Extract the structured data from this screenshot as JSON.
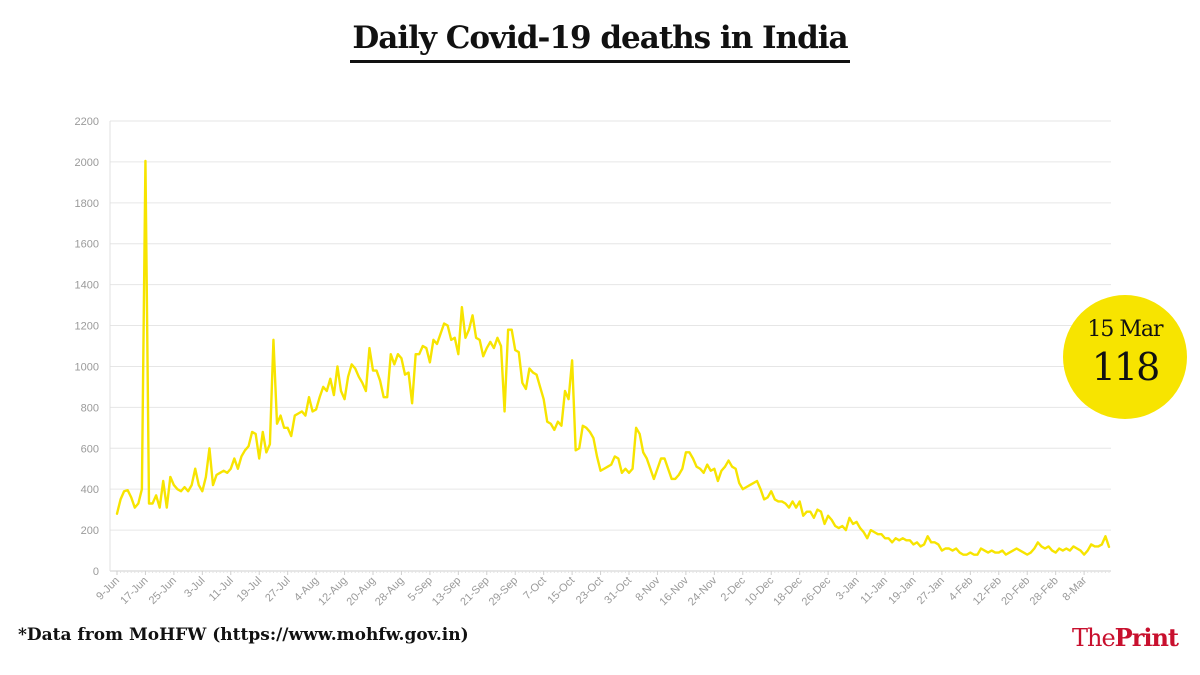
{
  "title": "Daily Covid-19 deaths in India",
  "source": "*Data from MoHFW (https://www.mohfw.gov.in)",
  "brand": {
    "part1": "The",
    "part2": "Print"
  },
  "callout": {
    "date": "15 Mar",
    "value": "118"
  },
  "colors": {
    "line": "#f7e400",
    "grid": "#e6e6e6",
    "axis_text": "#9a9a9a",
    "brand": "#c8102e",
    "badge": "#f7e400"
  },
  "chart_data": {
    "type": "line",
    "title": "Daily Covid-19 deaths in India",
    "xlabel": "",
    "ylabel": "",
    "ylim": [
      0,
      2200
    ],
    "yticks": [
      0,
      200,
      400,
      600,
      800,
      1000,
      1200,
      1400,
      1600,
      1800,
      2000,
      2200
    ],
    "grid": true,
    "legend": "none",
    "x_tick_labels": [
      "9-Jun",
      "17-Jun",
      "25-Jun",
      "3-Jul",
      "11-Jul",
      "19-Jul",
      "27-Jul",
      "4-Aug",
      "12-Aug",
      "20-Aug",
      "28-Aug",
      "5-Sep",
      "13-Sep",
      "21-Sep",
      "29-Sep",
      "7-Oct",
      "15-Oct",
      "23-Oct",
      "31-Oct",
      "8-Nov",
      "16-Nov",
      "24-Nov",
      "2-Dec",
      "10-Dec",
      "18-Dec",
      "26-Dec",
      "3-Jan",
      "11-Jan",
      "19-Jan",
      "27-Jan",
      "4-Feb",
      "12-Feb",
      "20-Feb",
      "28-Feb",
      "8-Mar"
    ],
    "x_start": "9-Jun",
    "x_end": "15-Mar",
    "series": [
      {
        "values": [
          280,
          350,
          390,
          395,
          360,
          310,
          330,
          400,
          2005,
          330,
          330,
          370,
          310,
          440,
          310,
          460,
          420,
          400,
          390,
          410,
          390,
          420,
          500,
          420,
          390,
          460,
          600,
          420,
          470,
          480,
          490,
          480,
          500,
          550,
          500,
          560,
          590,
          610,
          680,
          670,
          550,
          680,
          580,
          620,
          1130,
          720,
          760,
          700,
          700,
          660,
          760,
          770,
          780,
          760,
          850,
          780,
          790,
          850,
          900,
          880,
          940,
          860,
          1000,
          880,
          840,
          950,
          1010,
          990,
          950,
          920,
          880,
          1090,
          980,
          980,
          930,
          850,
          850,
          1060,
          1010,
          1060,
          1040,
          960,
          970,
          820,
          1060,
          1060,
          1100,
          1090,
          1020,
          1130,
          1110,
          1160,
          1210,
          1200,
          1130,
          1140,
          1060,
          1290,
          1140,
          1180,
          1250,
          1140,
          1130,
          1050,
          1090,
          1120,
          1090,
          1140,
          1100,
          780,
          1180,
          1180,
          1080,
          1070,
          920,
          890,
          990,
          970,
          960,
          900,
          840,
          730,
          720,
          690,
          730,
          710,
          880,
          840,
          1030,
          590,
          600,
          710,
          700,
          680,
          650,
          560,
          490,
          500,
          510,
          520,
          560,
          550,
          480,
          500,
          480,
          500,
          700,
          670,
          580,
          550,
          500,
          450,
          500,
          550,
          550,
          500,
          450,
          450,
          470,
          500,
          580,
          580,
          550,
          510,
          500,
          480,
          520,
          490,
          500,
          440,
          490,
          510,
          540,
          510,
          500,
          430,
          400,
          410,
          420,
          430,
          440,
          400,
          350,
          360,
          390,
          350,
          340,
          340,
          330,
          310,
          340,
          310,
          340,
          270,
          290,
          290,
          260,
          300,
          290,
          230,
          270,
          250,
          220,
          210,
          220,
          200,
          260,
          230,
          240,
          210,
          190,
          160,
          200,
          190,
          180,
          180,
          160,
          160,
          140,
          160,
          150,
          160,
          150,
          150,
          130,
          140,
          120,
          130,
          170,
          140,
          140,
          130,
          100,
          110,
          110,
          100,
          110,
          90,
          80,
          80,
          90,
          80,
          80,
          110,
          100,
          90,
          100,
          90,
          90,
          100,
          80,
          90,
          100,
          110,
          100,
          90,
          80,
          90,
          110,
          140,
          120,
          110,
          120,
          100,
          90,
          110,
          100,
          110,
          100,
          120,
          110,
          100,
          80,
          100,
          130,
          120,
          120,
          130,
          170,
          118
        ]
      }
    ]
  }
}
